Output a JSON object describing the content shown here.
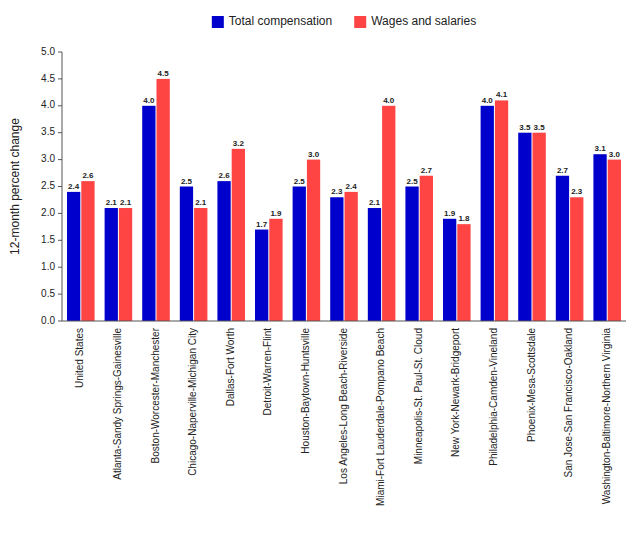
{
  "chart_data": {
    "type": "bar",
    "ylabel": "12-month percent change",
    "categories": [
      "United States",
      "Atlanta-Sandy Springs-Gainesville",
      "Boston-Worcester-Manchester",
      "Chicago-Naperville-Michigan City",
      "Dallas-Fort Worth",
      "Detroit-Warren-Flint",
      "Houston-Baytown-Huntsville",
      "Los Angeles-Long Beach-Riverside",
      "Miami-Fort Lauderdale-Pompano Beach",
      "Minneapolis-St. Paul-St. Cloud",
      "New York-Newark-Bridgeport",
      "Philadelphia-Camden-Vineland",
      "Phoenix-Mesa-Scottsdale",
      "San Jose-San Francisco-Oakland",
      "Washington-Baltimore-Northern Virginia"
    ],
    "series": [
      {
        "name": "Total compensation",
        "color": "#0000CC",
        "values": [
          2.4,
          2.1,
          4.0,
          2.5,
          2.6,
          1.7,
          2.5,
          2.3,
          2.1,
          2.5,
          1.9,
          4.0,
          3.5,
          2.7,
          3.1
        ],
        "value_labels": [
          "2.4",
          "2.1",
          "4.0",
          "2.5",
          "2.6",
          "1.7",
          "2.5",
          "2.3",
          "2.1",
          "2.5",
          "1.9",
          "4.0",
          "3.5",
          "2.7",
          "3.1"
        ]
      },
      {
        "name": "Wages and salaries",
        "color": "#FF4444",
        "values": [
          2.6,
          2.1,
          4.5,
          2.1,
          3.2,
          1.9,
          3.0,
          2.4,
          4.0,
          2.7,
          1.8,
          4.1,
          3.5,
          2.3,
          3.0
        ],
        "value_labels": [
          "2.6",
          "2.1",
          "4.5",
          "2.1",
          "3.2",
          "1.9",
          "3.0",
          "2.4",
          "4.0",
          "2.7",
          "1.8",
          "4.1",
          "3.5",
          "2.3",
          "3.0"
        ]
      }
    ],
    "ylim": [
      0.0,
      5.0
    ],
    "yticks": [
      {
        "value": 0.0,
        "label": "0.0"
      },
      0.5,
      {
        "value": 1.0,
        "label": "1.0"
      },
      1.5,
      {
        "value": 2.0,
        "label": "2.0"
      },
      2.5,
      {
        "value": 3.0,
        "label": "3.0"
      },
      3.5,
      {
        "value": 4.0,
        "label": "4.0"
      },
      4.5,
      {
        "value": 5.0,
        "label": "5.0"
      }
    ],
    "grid": false,
    "legend": "top",
    "data_labels": true
  }
}
